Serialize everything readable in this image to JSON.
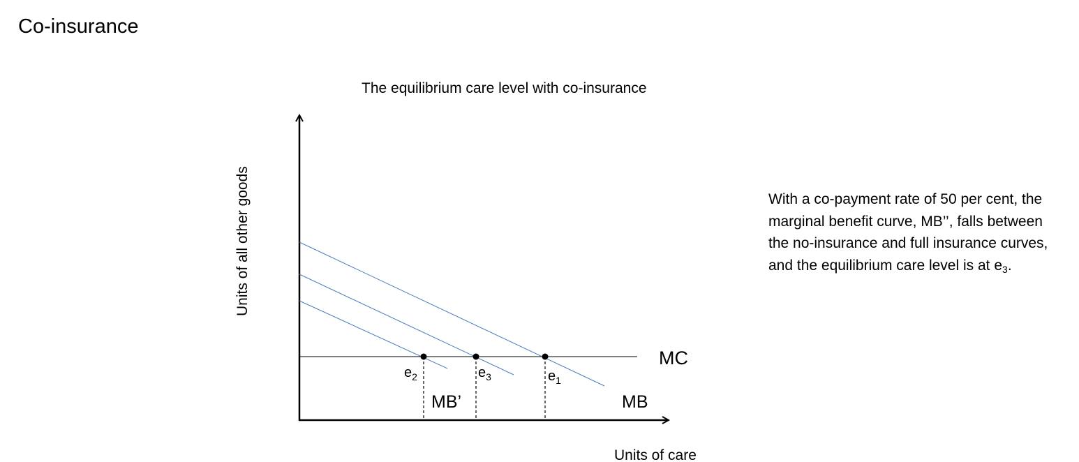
{
  "slide": {
    "title": "Co-insurance"
  },
  "diagram": {
    "title": "The equilibrium care level with co-insurance",
    "y_axis_label": "Units of all other goods",
    "x_axis_label": "Units of care",
    "curve_labels": {
      "mc": "MC",
      "mb": "MB",
      "mb_prime": "MB’"
    },
    "points": [
      {
        "label": "e",
        "sub": "2"
      },
      {
        "label": "e",
        "sub": "3"
      },
      {
        "label": "e",
        "sub": "1"
      }
    ],
    "colors": {
      "mb_curves": "#4a7bbf",
      "axes": "#000000",
      "mc_line": "#000000"
    }
  },
  "explanation": {
    "text": "With a co-payment rate of 50 per cent, the marginal benefit curve, MB’’, falls between the no-insurance and full insurance curves, and the equilibrium care level is at e",
    "sub": "3",
    "end": "."
  }
}
